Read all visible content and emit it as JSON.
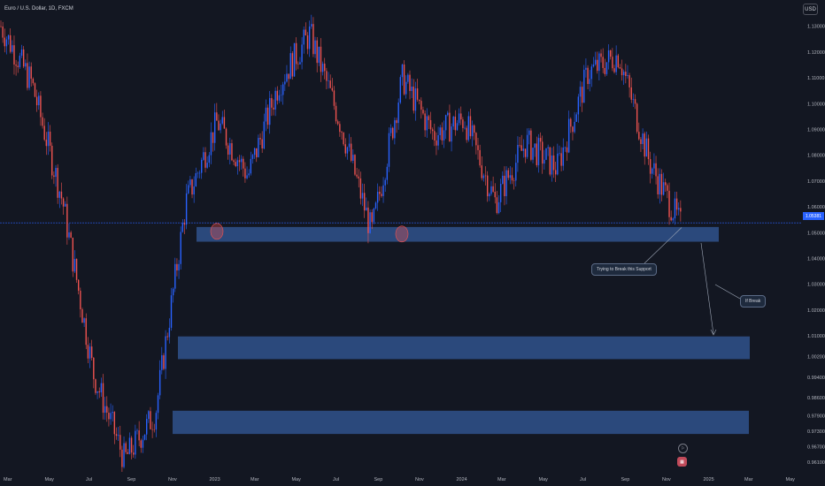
{
  "header": {
    "symbol": "Euro / U.S. Dollar, 1D, FXCM",
    "currency": "USD"
  },
  "colors": {
    "background": "#131722",
    "up": "#2962ff",
    "down": "#ef5350",
    "zone": "#2f4f86",
    "price_line": "#2962ff"
  },
  "annotations": {
    "support_note": "Trying to Break this Support",
    "break_note": "If Break"
  },
  "price_label": "1.05381",
  "events": {
    "flag_icon": "flag-icon",
    "earnings_icon": "calendar-event-icon"
  },
  "chart_data": {
    "type": "candlestick",
    "title": "Euro / U.S. Dollar, 1D, FXCM",
    "ylabel": "USD",
    "ylim": [
      0.958,
      1.134
    ],
    "y_ticks": [
      "1.13000",
      "1.12000",
      "1.11000",
      "1.10000",
      "1.09000",
      "1.08000",
      "1.07000",
      "1.06000",
      "1.05000",
      "1.04000",
      "1.03000",
      "1.02000",
      "1.01000",
      "1.00200",
      "0.99400",
      "0.98600",
      "0.97900",
      "0.97300",
      "0.96700",
      "0.96100"
    ],
    "x_ticks": [
      "Mar",
      "May",
      "Jul",
      "Sep",
      "Nov",
      "2023",
      "Mar",
      "May",
      "Jul",
      "Sep",
      "Nov",
      "2024",
      "Mar",
      "May",
      "Jul",
      "Sep",
      "Nov",
      "2025",
      "Mar",
      "May"
    ],
    "series": [
      {
        "x": [
          "2022-03",
          "2022-05",
          "2022-07",
          "2022-09",
          "2022-10",
          "2022-11",
          "2022-12",
          "2023-02",
          "2023-04",
          "2023-05",
          "2023-07",
          "2023-08",
          "2023-10",
          "2023-12",
          "2024-01",
          "2024-03",
          "2024-04",
          "2024-06",
          "2024-07",
          "2024-08",
          "2024-09",
          "2024-10",
          "2024-11"
        ],
        "values": [
          1.13,
          1.108,
          1.062,
          0.995,
          0.962,
          0.98,
          1.062,
          1.093,
          1.072,
          1.108,
          1.127,
          1.092,
          1.05,
          1.11,
          1.088,
          1.094,
          1.062,
          1.085,
          1.075,
          1.112,
          1.119,
          1.077,
          1.053
        ]
      }
    ],
    "zones": [
      {
        "from": 1.0465,
        "to": 1.0522
      },
      {
        "from": 1.001,
        "to": 1.0098
      },
      {
        "from": 0.972,
        "to": 0.981
      }
    ],
    "last_price": 1.05381,
    "grid": false
  }
}
